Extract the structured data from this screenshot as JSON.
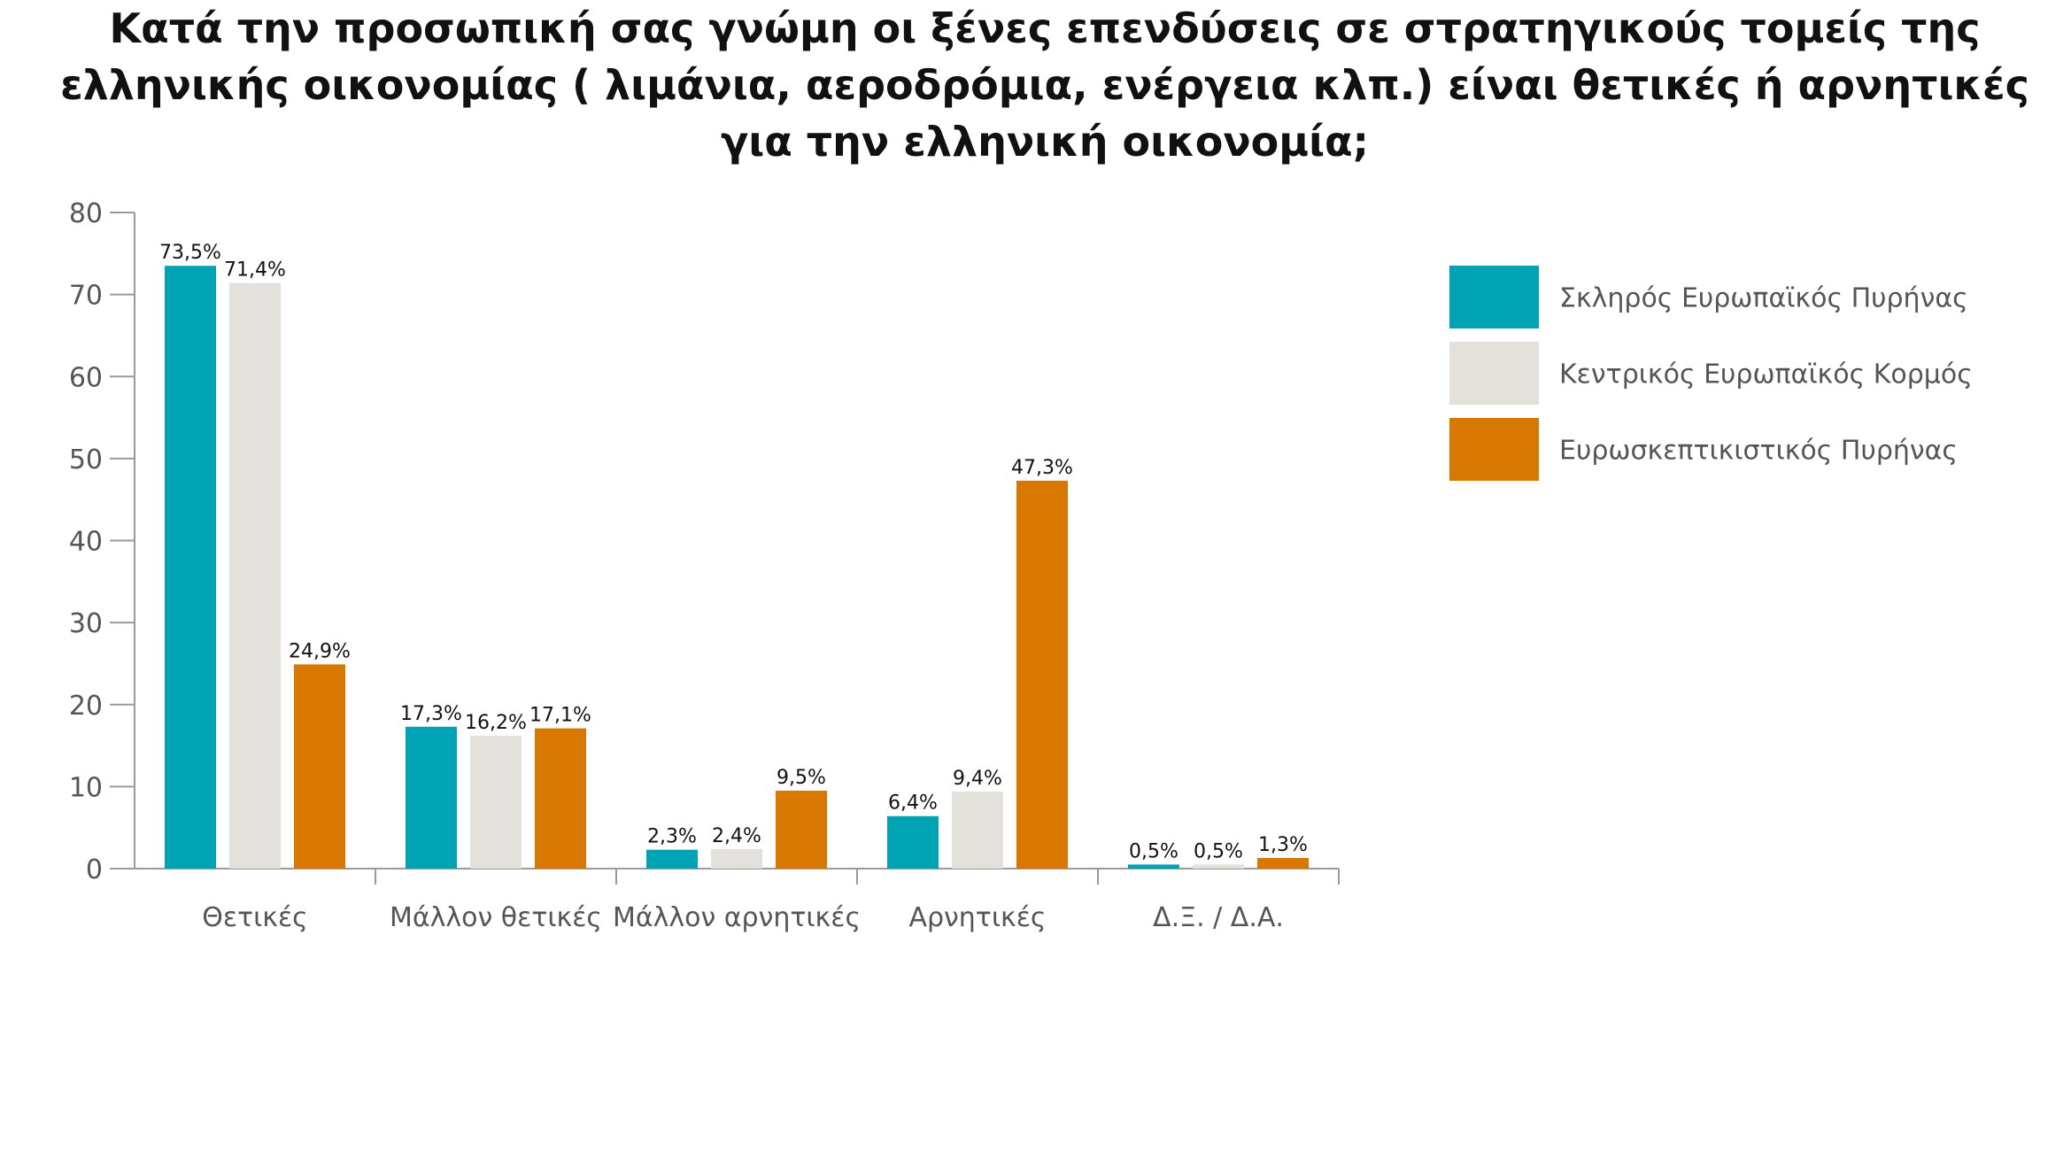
{
  "chart_data": {
    "type": "bar",
    "title": "Κατά την προσωπική σας γνώμη οι ξένες επενδύσεις σε στρατηγικούς τομείς της ελληνικής οικονομίας ( λιμάνια, αεροδρόμια, ενέργεια κλπ.) είναι θετικές ή αρνητικές για την ελληνική οικονομία;",
    "xlabel": "",
    "ylabel": "",
    "ylim": [
      0,
      80
    ],
    "yticks": [
      0,
      10,
      20,
      30,
      40,
      50,
      60,
      70,
      80
    ],
    "grid": false,
    "legend_position": "right",
    "categories": [
      "Θετικές",
      "Μάλλον θετικές",
      "Μάλλον αρνητικές",
      "Αρνητικές",
      "Δ.Ξ. / Δ.Α."
    ],
    "series": [
      {
        "name": "Σκληρός Ευρωπαϊκός Πυρήνας",
        "color": "#00A3B4",
        "values": [
          73.5,
          17.3,
          2.3,
          6.4,
          0.5
        ],
        "labels": [
          "73,5%",
          "17,3%",
          "2,3%",
          "6,4%",
          "0,5%"
        ]
      },
      {
        "name": "Κεντρικός Ευρωπαϊκός Κορμός",
        "color": "#E4E0DC",
        "values": [
          71.4,
          16.2,
          2.4,
          9.4,
          0.5
        ],
        "labels": [
          "71,4%",
          "16,2%",
          "2,4%",
          "9,4%",
          "0,5%"
        ]
      },
      {
        "name": "Ευρωσκεπτικιστικός Πυρήνας",
        "color": "#D97800",
        "values": [
          24.9,
          17.1,
          9.5,
          47.3,
          1.3
        ],
        "labels": [
          "24,9%",
          "17,1%",
          "9,5%",
          "47,3%",
          "1,3%"
        ]
      }
    ]
  }
}
